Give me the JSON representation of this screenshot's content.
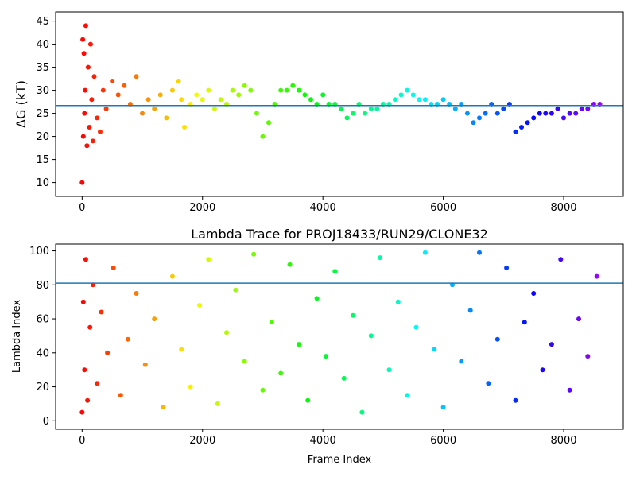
{
  "chart_data": [
    {
      "type": "scatter",
      "title": "",
      "xlabel": "",
      "ylabel": "ΔG (kT)",
      "xlim": [
        -440,
        8990
      ],
      "ylim": [
        7,
        47
      ],
      "xticks": [
        "0",
        "2000",
        "4000",
        "6000",
        "8000"
      ],
      "yticks": [
        "10",
        "15",
        "20",
        "25",
        "30",
        "35",
        "40",
        "45"
      ],
      "reference_line": {
        "y": 26.7,
        "color": "#1f77b4"
      },
      "colormap": "rainbow (red at frame 0 → violet at frame 8600)",
      "series": [
        {
          "x": [
            0,
            10,
            20,
            30,
            40,
            50,
            60,
            80,
            100,
            120,
            140,
            160,
            180,
            200,
            250,
            300,
            350,
            400,
            500,
            600,
            700,
            800,
            900,
            1000,
            1100,
            1200,
            1300,
            1400,
            1500,
            1600,
            1650,
            1700,
            1800,
            1900,
            2000,
            2100,
            2200,
            2300,
            2400,
            2500,
            2600,
            2700,
            2800,
            2900,
            3000,
            3100,
            3200,
            3300,
            3400,
            3500,
            3600,
            3700,
            3800,
            3900,
            4000,
            4100,
            4200,
            4300,
            4400,
            4500,
            4600,
            4700,
            4800,
            4900,
            5000,
            5100,
            5200,
            5300,
            5400,
            5500,
            5600,
            5700,
            5800,
            5900,
            6000,
            6100,
            6200,
            6300,
            6400,
            6500,
            6600,
            6700,
            6800,
            6900,
            7000,
            7100,
            7200,
            7300,
            7400,
            7500,
            7600,
            7700,
            7800,
            7900,
            8000,
            8100,
            8200,
            8300,
            8400,
            8500,
            8600
          ],
          "y": [
            10,
            41,
            20,
            38,
            25,
            30,
            44,
            18,
            35,
            22,
            40,
            28,
            19,
            33,
            24,
            21,
            30,
            26,
            32,
            29,
            31,
            27,
            33,
            25,
            28,
            26,
            29,
            24,
            30,
            32,
            28,
            22,
            27,
            29,
            28,
            30,
            26,
            28,
            27,
            30,
            29,
            31,
            30,
            25,
            20,
            23,
            27,
            30,
            30,
            31,
            30,
            29,
            28,
            27,
            29,
            27,
            27,
            26,
            24,
            25,
            27,
            25,
            26,
            26,
            27,
            27,
            28,
            29,
            30,
            29,
            28,
            28,
            27,
            27,
            28,
            27,
            26,
            27,
            25,
            23,
            24,
            25,
            27,
            25,
            26,
            27,
            21,
            22,
            23,
            24,
            25,
            25,
            25,
            26,
            24,
            25,
            25,
            26,
            26,
            27,
            27
          ]
        }
      ]
    },
    {
      "type": "scatter",
      "title": "Lambda Trace for PROJ18433/RUN29/CLONE32",
      "xlabel": "Frame Index",
      "ylabel": "Lambda Index",
      "xlim": [
        -440,
        8990
      ],
      "ylim": [
        -5,
        104
      ],
      "xticks": [
        "0",
        "2000",
        "4000",
        "6000",
        "8000"
      ],
      "yticks": [
        "0",
        "20",
        "40",
        "60",
        "80",
        "100"
      ],
      "reference_line": {
        "y": 81,
        "color": "#1f77b4"
      },
      "colormap": "rainbow (red at frame 0 → violet at frame 8600)",
      "series": [
        {
          "x": [
            0,
            20,
            40,
            60,
            90,
            130,
            180,
            250,
            320,
            420,
            520,
            640,
            760,
            900,
            1050,
            1200,
            1350,
            1500,
            1650,
            1800,
            1950,
            2100,
            2250,
            2400,
            2550,
            2700,
            2850,
            3000,
            3150,
            3300,
            3450,
            3600,
            3750,
            3900,
            4050,
            4200,
            4350,
            4500,
            4650,
            4800,
            4950,
            5100,
            5250,
            5400,
            5550,
            5700,
            5850,
            6000,
            6150,
            6300,
            6450,
            6600,
            6750,
            6900,
            7050,
            7200,
            7350,
            7500,
            7650,
            7800,
            7950,
            8100,
            8250,
            8400,
            8550
          ],
          "y": [
            5,
            70,
            30,
            95,
            12,
            55,
            80,
            22,
            64,
            40,
            90,
            15,
            48,
            75,
            33,
            60,
            8,
            85,
            42,
            20,
            68,
            95,
            10,
            52,
            77,
            35,
            98,
            18,
            58,
            28,
            92,
            45,
            12,
            72,
            38,
            88,
            25,
            62,
            5,
            50,
            96,
            30,
            70,
            15,
            55,
            99,
            42,
            8,
            80,
            35,
            65,
            99,
            22,
            48,
            90,
            12,
            58,
            75,
            30,
            45,
            95,
            18,
            60,
            38,
            85
          ]
        }
      ]
    }
  ]
}
